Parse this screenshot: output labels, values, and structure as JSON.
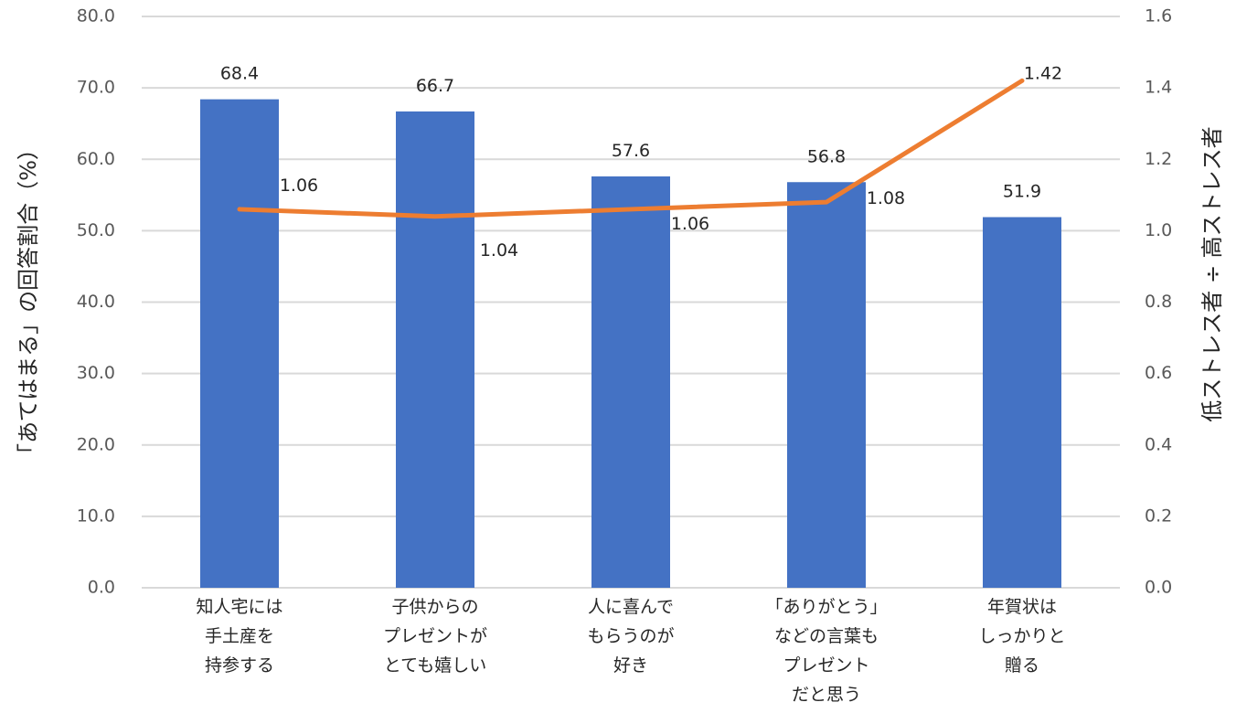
{
  "chart_data": {
    "type": "bar",
    "categories": [
      [
        "知人宅には",
        "手土産を",
        "持参する"
      ],
      [
        "子供からの",
        "プレゼントが",
        "とても嬉しい"
      ],
      [
        "人に喜んで",
        "もらうのが",
        "好き"
      ],
      [
        "「ありがとう」",
        "などの言葉も",
        "プレゼント",
        "だと思う"
      ],
      [
        "年賀状は",
        "しっかりと",
        "贈る"
      ]
    ],
    "bar_values": [
      68.4,
      66.7,
      57.6,
      56.8,
      51.9
    ],
    "bar_labels": [
      "68.4",
      "66.7",
      "57.6",
      "56.8",
      "51.9"
    ],
    "line_values": [
      1.06,
      1.04,
      1.06,
      1.08,
      1.42
    ],
    "line_labels": [
      "1.06",
      "1.04",
      "1.06",
      "1.08",
      "1.42"
    ],
    "ylabel": "「あてはまる」の回答割合（%）",
    "y2label": "低ストレス者 ÷ 高ストレス者",
    "ylim": [
      0,
      80
    ],
    "y2lim": [
      0,
      1.6
    ],
    "yticks": [
      "0.0",
      "10.0",
      "20.0",
      "30.0",
      "40.0",
      "50.0",
      "60.0",
      "70.0",
      "80.0"
    ],
    "y2ticks": [
      "0.0",
      "0.2",
      "0.4",
      "0.6",
      "0.8",
      "1.0",
      "1.2",
      "1.4",
      "1.6"
    ],
    "grid": true,
    "colors": {
      "bar": "#4472C4",
      "line": "#ED7D31",
      "grid": "#D9D9D9"
    }
  }
}
